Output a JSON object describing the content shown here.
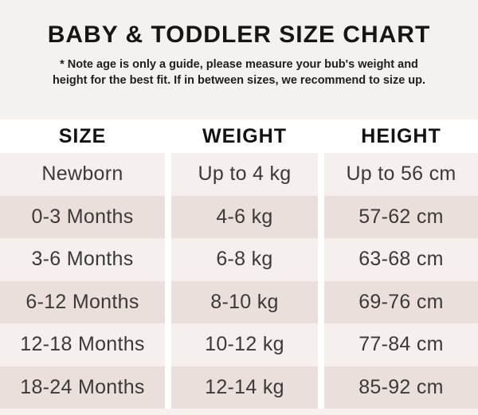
{
  "page": {
    "title": "BABY & TODDLER SIZE CHART",
    "note_lines": [
      "* Note age is only a guide, please measure your bub's weight and",
      "height for the best fit. If in between sizes, we recommend to size up."
    ]
  },
  "chart_data": {
    "type": "table",
    "title": "BABY & TODDLER SIZE CHART",
    "note": "* Note age is only a guide, please measure your bub's weight and height for the best fit. If in between sizes, we recommend to size up.",
    "columns": [
      "SIZE",
      "WEIGHT",
      "HEIGHT"
    ],
    "rows": [
      [
        "Newborn",
        "Up to 4 kg",
        "Up to 56 cm"
      ],
      [
        "0-3 Months",
        "4-6 kg",
        "57-62 cm"
      ],
      [
        "3-6 Months",
        "6-8 kg",
        "63-68 cm"
      ],
      [
        "6-12 Months",
        "8-10 kg",
        "69-76 cm"
      ],
      [
        "12-18 Months",
        "10-12 kg",
        "77-84 cm"
      ],
      [
        "18-24 Months",
        "12-14 kg",
        "85-92 cm"
      ]
    ],
    "row_striping": [
      "light",
      "dark",
      "light",
      "dark",
      "light",
      "dark"
    ]
  },
  "colors": {
    "page_bg": "#f5f1ee",
    "header_bg": "#ffffff",
    "row_light": "#f5efed",
    "row_dark": "#ebdfdb",
    "column_gap": "#ffffff",
    "title_text": "#161616",
    "cell_text": "#3a3a3a"
  }
}
